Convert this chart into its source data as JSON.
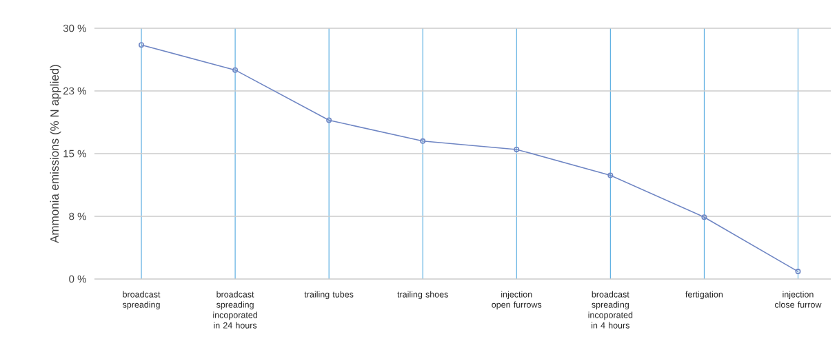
{
  "chart_data": {
    "type": "line",
    "ylabel": "Ammonia emissions (% N applied)",
    "categories": [
      "broadcast spreading",
      "broadcast spreading incoporated in 24 hours",
      "trailing tubes",
      "trailing shoes",
      "injection open furrows",
      "broadcast spreading incoporated in 4 hours",
      "fertigation",
      "injection close furrow"
    ],
    "series": [
      {
        "color": "#6f86c4",
        "values": [
          28.0,
          25.0,
          19.0,
          16.5,
          15.5,
          12.4,
          7.4,
          0.9
        ]
      }
    ],
    "ylim": [
      0,
      30
    ],
    "yticks": [
      {
        "value": 0,
        "label": "0 %"
      },
      {
        "value": 7.5,
        "label": "8 %"
      },
      {
        "value": 15,
        "label": "15 %"
      },
      {
        "value": 22.5,
        "label": "23 %"
      },
      {
        "value": 30,
        "label": "30 %"
      }
    ],
    "grid": true,
    "marker": "circle",
    "line_style": "solid"
  }
}
